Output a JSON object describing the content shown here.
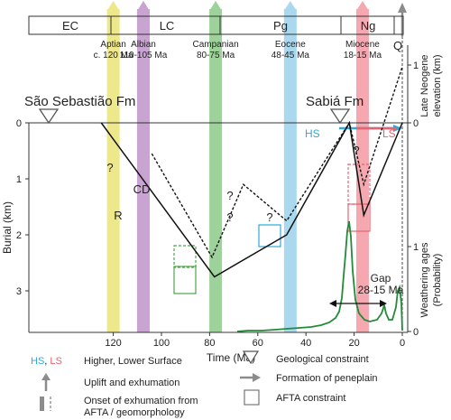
{
  "periods": [
    "EC",
    "LC",
    "Pg",
    "Ng",
    "Q"
  ],
  "events": [
    {
      "name": "Aptian",
      "age": "c. 120 Ma",
      "time": 120,
      "color": "#ede98a"
    },
    {
      "name": "Albian",
      "age": "110-105 Ma",
      "time": 107.5,
      "color": "#c9a3d1"
    },
    {
      "name": "Campanian",
      "age": "80-75 Ma",
      "time": 77.5,
      "color": "#9dd29a"
    },
    {
      "name": "Eocene",
      "age": "48-45 Ma",
      "time": 46.5,
      "color": "#a9d8ef"
    },
    {
      "name": "Miocene",
      "age": "18-15 Ma",
      "time": 16.5,
      "color": "#f5a8b0"
    }
  ],
  "formations": {
    "sao_sebastiao": {
      "label": "São Sebastião Fm",
      "time": 125
    },
    "sabia": {
      "label": "Sabiá Fm",
      "time": 22
    }
  },
  "surfaces": {
    "hs": "HS",
    "ls": "LS"
  },
  "curve_labels": {
    "cd": "CD",
    "r": "R",
    "q": "?"
  },
  "gap": {
    "label": "Gap",
    "range": "28-15 Ma",
    "start": 28,
    "end": 15
  },
  "axes": {
    "x_label": "Time (Ma)",
    "x_ticks": [
      120,
      100,
      80,
      60,
      40,
      20,
      0
    ],
    "y_label": "Burial (km)",
    "y_ticks": [
      0,
      1,
      2,
      3
    ],
    "right_top_label_1": "Late Neogene",
    "right_top_label_2": "elevation (km)",
    "right_top_ticks": [
      1,
      0
    ],
    "right_bottom_label_1": "Weathering ages",
    "right_bottom_label_2": "(Probability)",
    "right_bottom_ticks": [
      1,
      0
    ]
  },
  "paths": {
    "R": [
      [
        125,
        0
      ],
      [
        78,
        2.75
      ],
      [
        48,
        2.0
      ],
      [
        22,
        0
      ],
      [
        16,
        1.65
      ],
      [
        0,
        0
      ]
    ],
    "CD": [
      [
        104,
        0.55
      ],
      [
        79,
        2.4
      ],
      [
        66,
        1.1
      ],
      [
        48,
        1.75
      ],
      [
        22,
        0
      ],
      [
        16,
        1.1
      ],
      [
        0,
        -1.0
      ]
    ]
  },
  "legend": {
    "hs_code": "HS",
    "comma": ",",
    "ls_code": "LS",
    "hs_ls_text": "Higher, Lower Surface",
    "uplift": "Uplift and exhumation",
    "onset_1": "Onset of exhumation from",
    "onset_2": "AFTA / geomorphology",
    "geo": "Geological constraint",
    "pene": "Formation of peneplain",
    "afta": "AFTA constraint"
  },
  "colors": {
    "hs": "#2fa9d9",
    "ls": "#e8636e",
    "weathering": "#238a3a",
    "grey_arrow": "#8c8c8c"
  }
}
